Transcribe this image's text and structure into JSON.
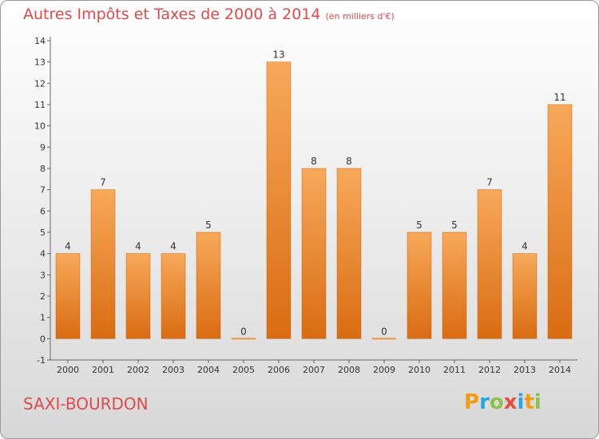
{
  "chart_data": {
    "type": "bar",
    "title": "Autres Impôts et Taxes de 2000 à 2014",
    "subtitle": "(en milliers d'€)",
    "categories": [
      "2000",
      "2001",
      "2002",
      "2003",
      "2004",
      "2005",
      "2006",
      "2007",
      "2008",
      "2009",
      "2010",
      "2011",
      "2012",
      "2013",
      "2014"
    ],
    "values": [
      4,
      7,
      4,
      4,
      5,
      0,
      13,
      8,
      8,
      0,
      5,
      5,
      7,
      4,
      11
    ],
    "ylim": [
      -1,
      14
    ],
    "yticks": [
      -1,
      0,
      1,
      2,
      3,
      4,
      5,
      6,
      7,
      8,
      9,
      10,
      11,
      12,
      13,
      14
    ],
    "grid": false,
    "bar_color": "#f28c2e"
  },
  "footer": {
    "commune": "SAXI-BOURDON",
    "logo": [
      "P",
      "r",
      "o",
      "x",
      "i",
      "t",
      "i"
    ],
    "logo_colors": [
      "#f39c12",
      "#27a7e0",
      "#8bc34a",
      "#e74c3c",
      "#27a7e0",
      "#f39c12",
      "#8bc34a"
    ]
  }
}
